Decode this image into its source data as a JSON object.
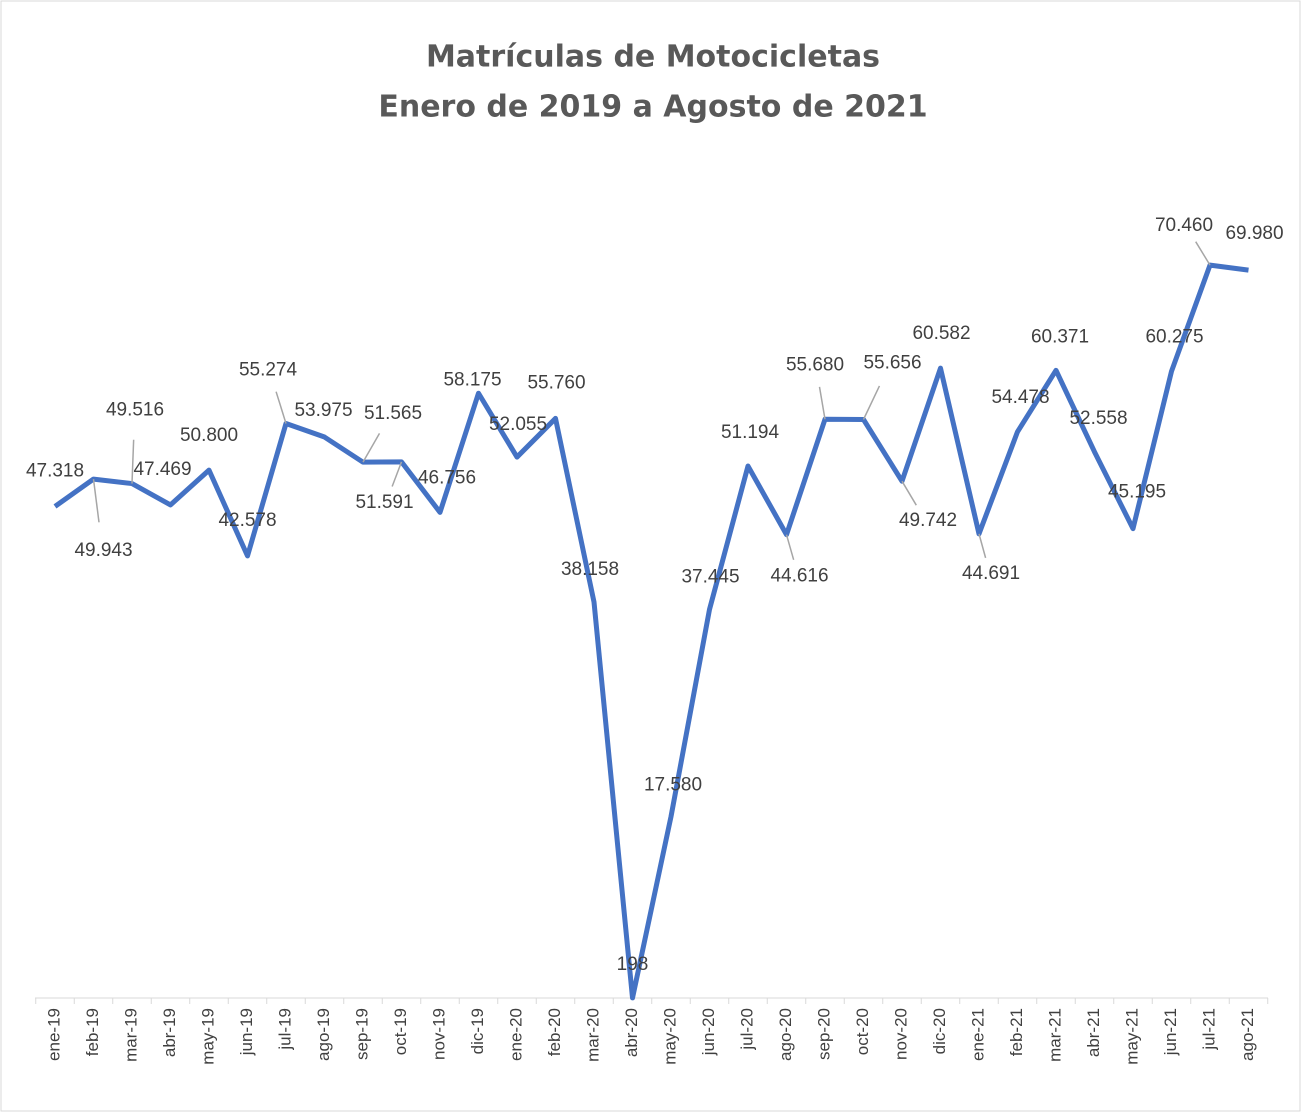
{
  "chart_data": {
    "type": "line",
    "title": "Matrículas de Motocicletas",
    "subtitle": "Enero de 2019 a Agosto de 2021",
    "categories": [
      "ene-19",
      "feb-19",
      "mar-19",
      "abr-19",
      "may-19",
      "jun-19",
      "jul-19",
      "ago-19",
      "sep-19",
      "oct-19",
      "nov-19",
      "dic-19",
      "ene-20",
      "feb-20",
      "mar-20",
      "abr-20",
      "may-20",
      "jun-20",
      "jul-20",
      "ago-20",
      "sep-20",
      "oct-20",
      "nov-20",
      "dic-20",
      "ene-21",
      "feb-21",
      "mar-21",
      "abr-21",
      "may-21",
      "jun-21",
      "jul-21",
      "ago-21"
    ],
    "series": [
      {
        "name": "Matrículas",
        "color": "#4472c4",
        "values": [
          47318,
          49943,
          49516,
          47469,
          50800,
          42578,
          55274,
          53975,
          51565,
          51591,
          46756,
          58175,
          52055,
          55760,
          38158,
          198,
          17580,
          37445,
          51194,
          44616,
          55680,
          55656,
          49742,
          60582,
          44691,
          54478,
          60371,
          52558,
          45195,
          60275,
          70460,
          69980
        ],
        "value_labels": [
          "47.318",
          "49.943",
          "49.516",
          "47.469",
          "50.800",
          "42.578",
          "55.274",
          "53.975",
          "51.565",
          "51.591",
          "46.756",
          "58.175",
          "52.055",
          "55.760",
          "38.158",
          "198",
          "17.580",
          "37.445",
          "51.194",
          "44.616",
          "55.680",
          "55.656",
          "49.742",
          "60.582",
          "44.691",
          "54.478",
          "60.371",
          "52.558",
          "45.195",
          "60.275",
          "70.460",
          "69.980"
        ]
      }
    ]
  }
}
